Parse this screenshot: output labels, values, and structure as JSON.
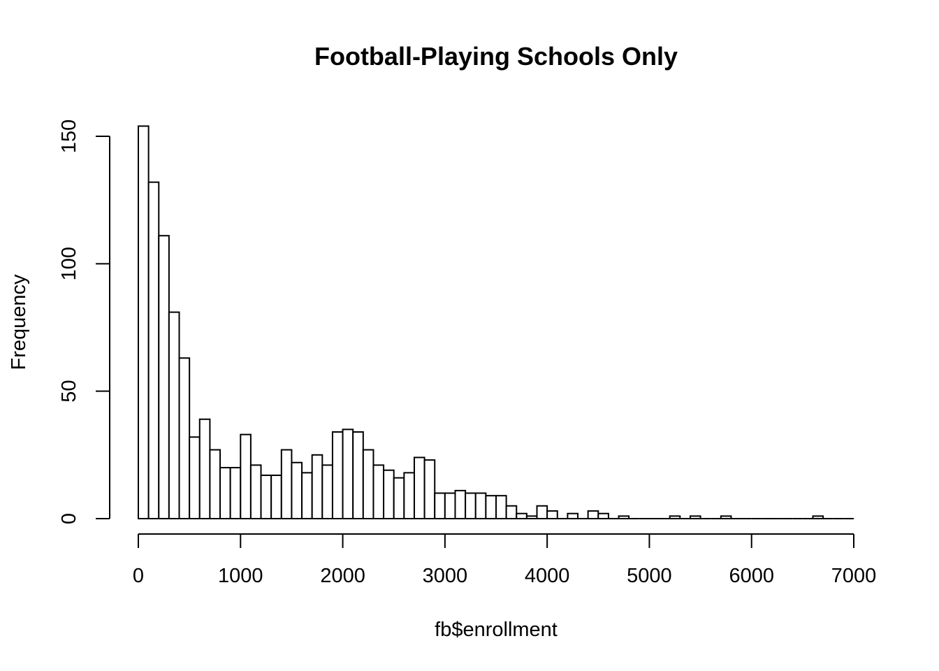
{
  "chart_data": {
    "type": "bar",
    "title": "Football-Playing Schools Only",
    "xlabel": "fb$enrollment",
    "ylabel": "Frequency",
    "bin_width": 100,
    "bin_start": 0,
    "xlim": [
      0,
      7000
    ],
    "ylim": [
      0,
      150
    ],
    "x_ticks": [
      0,
      1000,
      2000,
      3000,
      4000,
      5000,
      6000,
      7000
    ],
    "y_ticks": [
      0,
      50,
      100,
      150
    ],
    "values": [
      154,
      132,
      111,
      81,
      63,
      32,
      39,
      27,
      20,
      20,
      33,
      21,
      17,
      17,
      27,
      22,
      18,
      25,
      21,
      34,
      35,
      34,
      27,
      21,
      19,
      16,
      18,
      24,
      23,
      10,
      10,
      11,
      10,
      10,
      9,
      9,
      5,
      2,
      1,
      5,
      3,
      0,
      2,
      0,
      3,
      2,
      0,
      1,
      0,
      0,
      0,
      0,
      1,
      0,
      1,
      0,
      0,
      1,
      0,
      0,
      0,
      0,
      0,
      0,
      0,
      0,
      1,
      0,
      0,
      0
    ],
    "grid": false,
    "colors": {
      "bar_fill": "#ffffff",
      "bar_stroke": "#000000"
    }
  }
}
